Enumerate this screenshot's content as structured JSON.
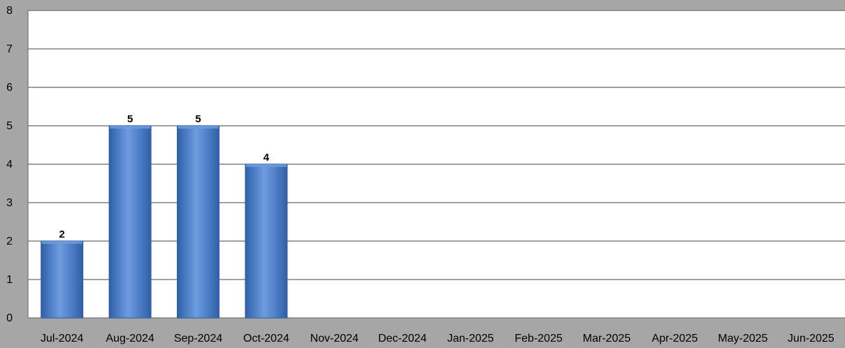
{
  "chart_data": {
    "type": "bar",
    "title": "",
    "xlabel": "",
    "ylabel": "",
    "categories": [
      "Jul-2024",
      "Aug-2024",
      "Sep-2024",
      "Oct-2024",
      "Nov-2024",
      "Dec-2024",
      "Jan-2025",
      "Feb-2025",
      "Mar-2025",
      "Apr-2025",
      "May-2025",
      "Jun-2025"
    ],
    "values": [
      2,
      5,
      5,
      4,
      null,
      null,
      null,
      null,
      null,
      null,
      null,
      null
    ],
    "data_labels": [
      "2",
      "5",
      "5",
      "4",
      "",
      "",
      "",
      "",
      "",
      "",
      "",
      ""
    ],
    "ylim": [
      0,
      8
    ],
    "yticks": [
      "0",
      "1",
      "2",
      "3",
      "4",
      "5",
      "6",
      "7",
      "8"
    ],
    "grid": true,
    "legend": "none",
    "colors": {
      "bar": "#4a7fcf",
      "bar_dark": "#2e5fa8",
      "bar_light": "#6e9de0",
      "frame": "#a6a6a6",
      "plot_bg": "#ffffff",
      "grid": "#808080"
    }
  }
}
